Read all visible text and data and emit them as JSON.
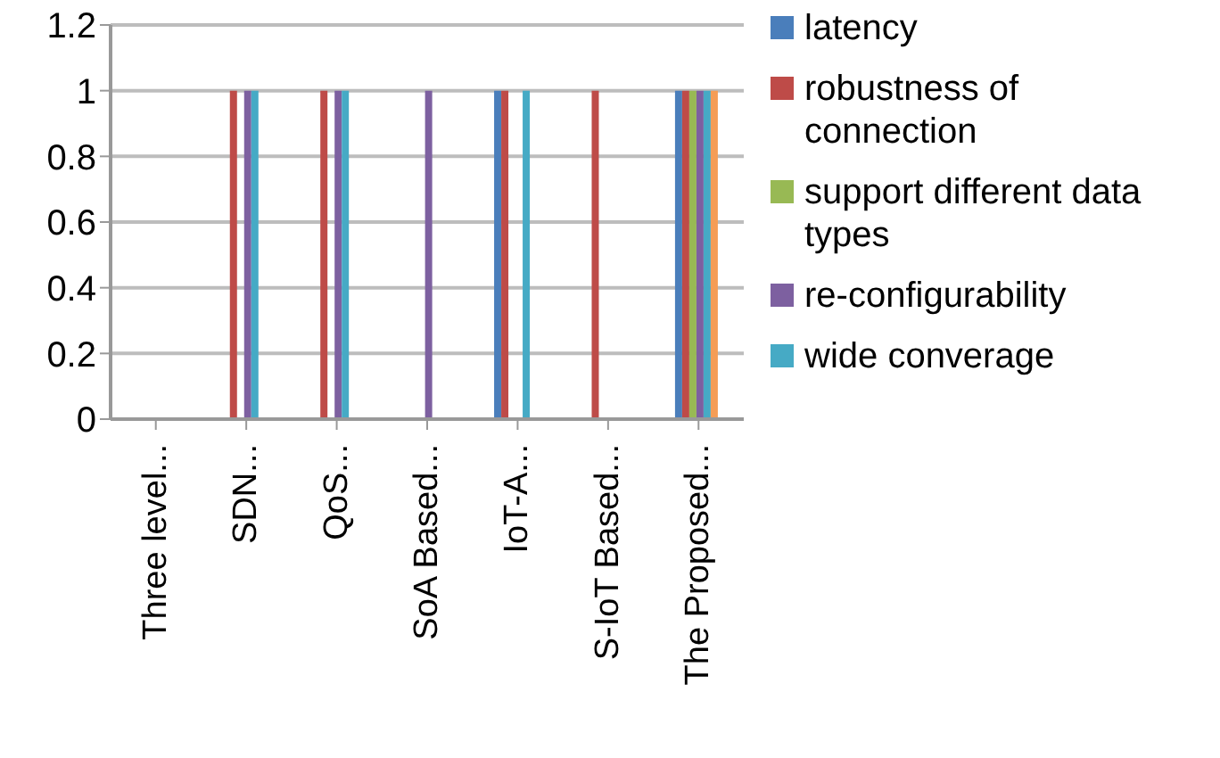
{
  "chart_data": {
    "type": "bar",
    "categories": [
      "Three level...",
      "SDN...",
      "QoS...",
      "SoA Based...",
      "IoT-A...",
      "S-IoT Based...",
      "The Proposed..."
    ],
    "series": [
      {
        "name": "latency",
        "color": "#4a7ebb",
        "values": [
          0,
          0,
          0,
          0,
          1,
          0,
          1
        ]
      },
      {
        "name": "robustness of connection",
        "color": "#be4b48",
        "values": [
          0,
          1,
          1,
          0,
          1,
          1,
          1
        ]
      },
      {
        "name": "support different data types",
        "color": "#98b954",
        "values": [
          0,
          0,
          0,
          0,
          0,
          0,
          1
        ]
      },
      {
        "name": "re-configurability",
        "color": "#7d60a0",
        "values": [
          0,
          1,
          1,
          1,
          0,
          0,
          1
        ]
      },
      {
        "name": "wide converage",
        "color": "#46aac5",
        "values": [
          0,
          1,
          1,
          0,
          1,
          0,
          1
        ]
      },
      {
        "color": "#f59d56",
        "values": [
          0,
          0,
          0,
          0,
          0,
          0,
          1
        ]
      }
    ],
    "ylim": [
      0,
      1.2
    ],
    "yticks": [
      0,
      {
        "value": 0.2,
        "label": "0.2"
      },
      {
        "value": 0.4,
        "label": "0.4"
      },
      {
        "value": 0.6,
        "label": "0.6"
      },
      {
        "value": 0.8,
        "label": "0.8"
      },
      1,
      {
        "value": 1.2,
        "label": "1.2"
      }
    ],
    "grid": "y",
    "legend": "right"
  }
}
